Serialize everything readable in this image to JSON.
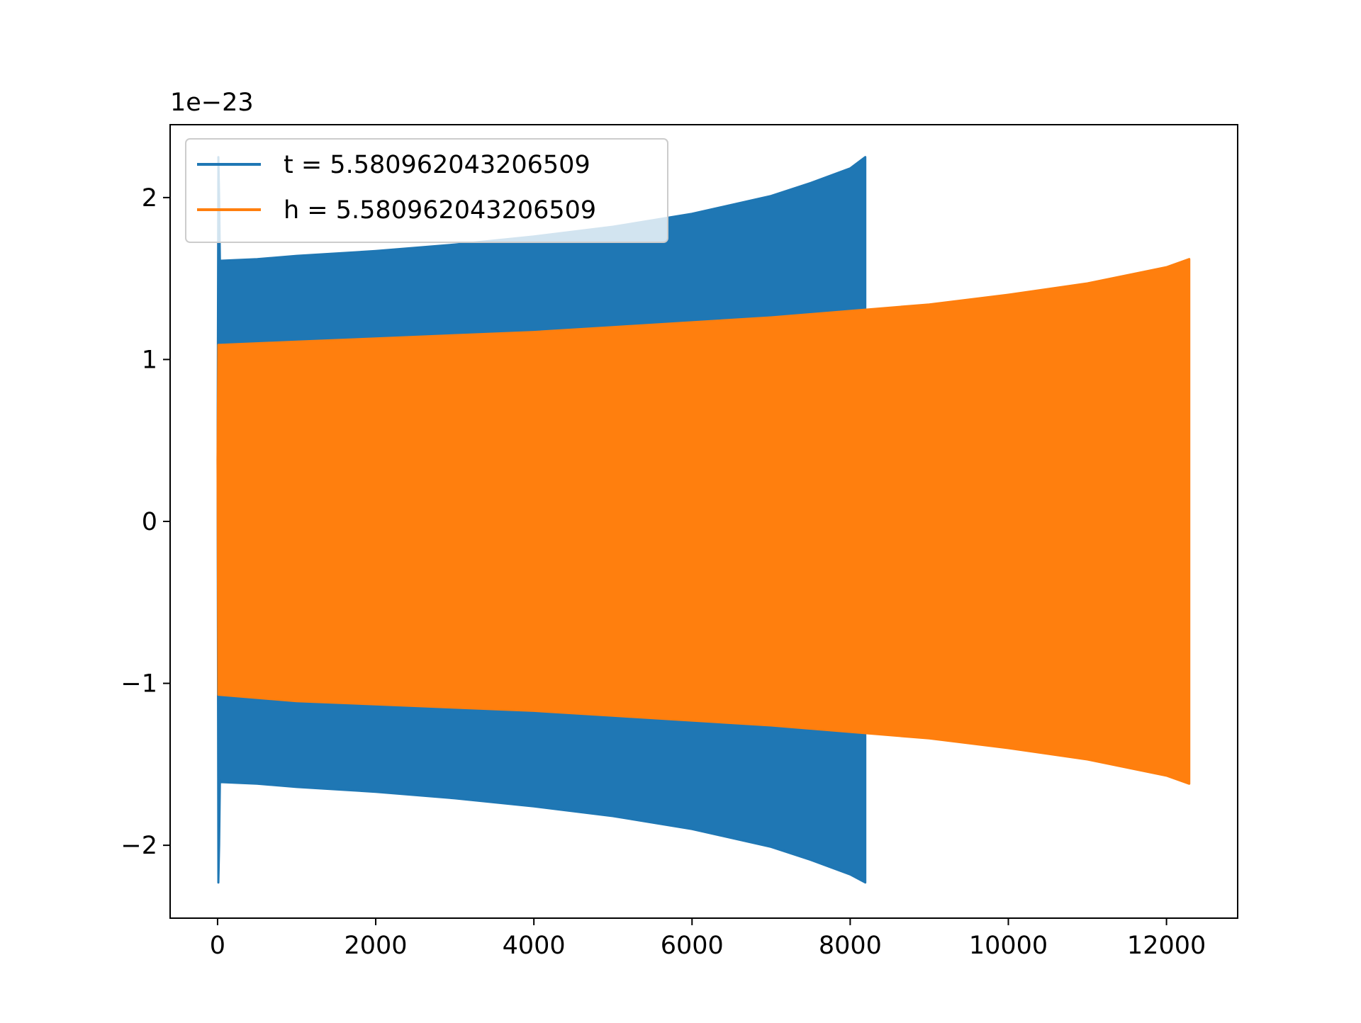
{
  "chart_data": {
    "type": "line",
    "title": "",
    "xlabel": "",
    "ylabel": "",
    "y_offset_label": "1e−23",
    "xlim": [
      -600,
      12900
    ],
    "ylim": [
      -2.45,
      2.45
    ],
    "xticks": [
      0,
      2000,
      4000,
      6000,
      8000,
      10000,
      12000
    ],
    "xtick_labels": [
      "0",
      "2000",
      "4000",
      "6000",
      "8000",
      "10000",
      "12000"
    ],
    "yticks": [
      -2,
      -1,
      0,
      1,
      2
    ],
    "ytick_labels": [
      "−2",
      "−1",
      "0",
      "1",
      "2"
    ],
    "grid": false,
    "legend_position": "top-left",
    "series": [
      {
        "name": "t = 5.580962043206509",
        "color": "#1f77b4",
        "style": "dense oscillation (filled envelope)",
        "x": [
          0,
          10,
          20,
          30,
          40,
          500,
          1000,
          2000,
          3000,
          4000,
          5000,
          6000,
          7000,
          7500,
          8000,
          8191
        ],
        "y_upper": [
          0.38,
          2.25,
          2.0,
          1.6,
          1.61,
          1.62,
          1.64,
          1.67,
          1.71,
          1.76,
          1.82,
          1.9,
          2.01,
          2.09,
          2.18,
          2.25
        ],
        "y_lower": [
          0.38,
          -2.23,
          -2.0,
          -1.6,
          -1.61,
          -1.62,
          -1.64,
          -1.67,
          -1.71,
          -1.76,
          -1.82,
          -1.9,
          -2.01,
          -2.09,
          -2.18,
          -2.23
        ]
      },
      {
        "name": "h = 5.580962043206509",
        "color": "#ff7f0e",
        "style": "dense oscillation (filled envelope)",
        "x": [
          0,
          10,
          1000,
          2000,
          3000,
          4000,
          5000,
          6000,
          7000,
          8000,
          9000,
          10000,
          11000,
          12000,
          12288
        ],
        "y_upper": [
          0.38,
          1.09,
          1.11,
          1.13,
          1.15,
          1.17,
          1.2,
          1.23,
          1.26,
          1.3,
          1.34,
          1.4,
          1.47,
          1.57,
          1.62
        ],
        "y_lower": [
          0.38,
          -1.07,
          -1.11,
          -1.13,
          -1.15,
          -1.17,
          -1.2,
          -1.23,
          -1.26,
          -1.3,
          -1.34,
          -1.4,
          -1.47,
          -1.57,
          -1.62
        ]
      }
    ]
  }
}
